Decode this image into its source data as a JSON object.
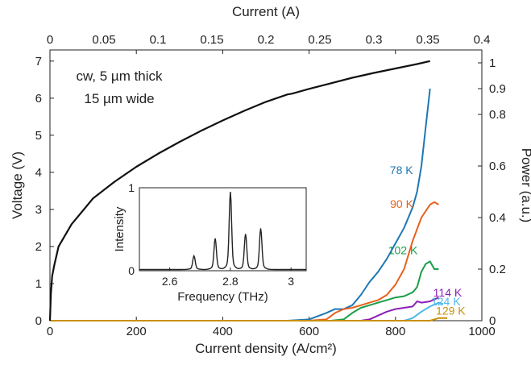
{
  "chart_data": {
    "type": "line",
    "annotation": [
      "cw, 5 µm thick",
      "15 µm wide"
    ],
    "axes": {
      "x_bottom": {
        "label": "Current density (A/cm²)",
        "lim": [
          0,
          1000
        ],
        "ticks": [
          0,
          200,
          400,
          600,
          800,
          1000
        ]
      },
      "x_top": {
        "label": "Current (A)",
        "lim": [
          0,
          0.4
        ],
        "ticks": [
          "0",
          "0.05",
          "0.1",
          "0.15",
          "0.2",
          "0.25",
          "0.3",
          "0.35",
          "0.4"
        ]
      },
      "y_left": {
        "label": "Voltage (V)",
        "lim": [
          0,
          7.3
        ],
        "ticks": [
          0,
          1,
          2,
          3,
          4,
          5,
          6,
          7
        ]
      },
      "y_right": {
        "label": "Power (a.u.)",
        "lim": [
          0,
          1.05
        ],
        "ticks": [
          "0",
          "0.2",
          "0.4",
          "0.6",
          "0.8",
          "0.9",
          "1"
        ]
      }
    },
    "voltage_series": {
      "color": "#111111",
      "x": [
        0,
        2,
        5,
        10,
        20,
        50,
        100,
        150,
        200,
        250,
        300,
        350,
        400,
        450,
        500,
        550,
        560,
        600,
        650,
        700,
        750,
        800,
        850,
        880
      ],
      "y": [
        0,
        0.7,
        1.2,
        1.5,
        2.0,
        2.6,
        3.3,
        3.75,
        4.15,
        4.5,
        4.82,
        5.12,
        5.4,
        5.66,
        5.9,
        6.1,
        6.12,
        6.25,
        6.4,
        6.55,
        6.68,
        6.8,
        6.92,
        7.0
      ]
    },
    "power_series": [
      {
        "name": "78 K",
        "color": "#1f77b4",
        "x": [
          0,
          550,
          600,
          640,
          660,
          680,
          700,
          720,
          740,
          760,
          780,
          800,
          820,
          840,
          850,
          860,
          870,
          880
        ],
        "y": [
          0,
          0,
          0.005,
          0.03,
          0.045,
          0.045,
          0.06,
          0.1,
          0.15,
          0.19,
          0.24,
          0.3,
          0.36,
          0.44,
          0.5,
          0.6,
          0.75,
          0.9
        ]
      },
      {
        "name": "90 K",
        "color": "#e8601c",
        "x": [
          0,
          600,
          640,
          660,
          680,
          700,
          720,
          740,
          760,
          780,
          800,
          820,
          840,
          860,
          880,
          890,
          900
        ],
        "y": [
          0,
          0,
          0.005,
          0.03,
          0.045,
          0.05,
          0.06,
          0.07,
          0.08,
          0.1,
          0.14,
          0.2,
          0.31,
          0.4,
          0.45,
          0.46,
          0.45
        ]
      },
      {
        "name": "102 K",
        "color": "#1a9e48",
        "x": [
          0,
          650,
          680,
          700,
          720,
          740,
          760,
          780,
          800,
          820,
          840,
          850,
          860,
          870,
          880,
          890,
          900
        ],
        "y": [
          0,
          0,
          0.005,
          0.03,
          0.05,
          0.06,
          0.07,
          0.08,
          0.09,
          0.095,
          0.11,
          0.13,
          0.19,
          0.22,
          0.23,
          0.2,
          0.2
        ]
      },
      {
        "name": "114 K",
        "color": "#8b1fb5",
        "x": [
          0,
          720,
          740,
          760,
          780,
          800,
          820,
          840,
          850,
          860,
          880,
          900
        ],
        "y": [
          0,
          0,
          0.005,
          0.02,
          0.035,
          0.045,
          0.05,
          0.055,
          0.075,
          0.07,
          0.075,
          0.09
        ]
      },
      {
        "name": "124 K",
        "color": "#4fb8e8",
        "x": [
          0,
          820,
          840,
          860,
          880,
          900,
          910
        ],
        "y": [
          0,
          0,
          0.01,
          0.035,
          0.055,
          0.07,
          0.065
        ]
      },
      {
        "name": "129 K",
        "color": "#c8900a",
        "x": [
          0,
          880,
          890,
          900,
          920
        ],
        "y": [
          0,
          0,
          0.005,
          0.01,
          0.01
        ]
      }
    ],
    "inset": {
      "type": "line",
      "xlabel": "Frequency (THz)",
      "ylabel": "Intensity",
      "xlim": [
        2.5,
        3.05
      ],
      "ylim": [
        0,
        1.0
      ],
      "xticks": [
        "2.6",
        "2.8",
        "3"
      ],
      "yticks": [
        "0",
        "1"
      ],
      "peaks": [
        {
          "center": 2.68,
          "height": 0.15
        },
        {
          "center": 2.75,
          "height": 0.34
        },
        {
          "center": 2.8,
          "height": 0.85
        },
        {
          "center": 2.85,
          "height": 0.39
        },
        {
          "center": 2.9,
          "height": 0.45
        }
      ]
    }
  }
}
